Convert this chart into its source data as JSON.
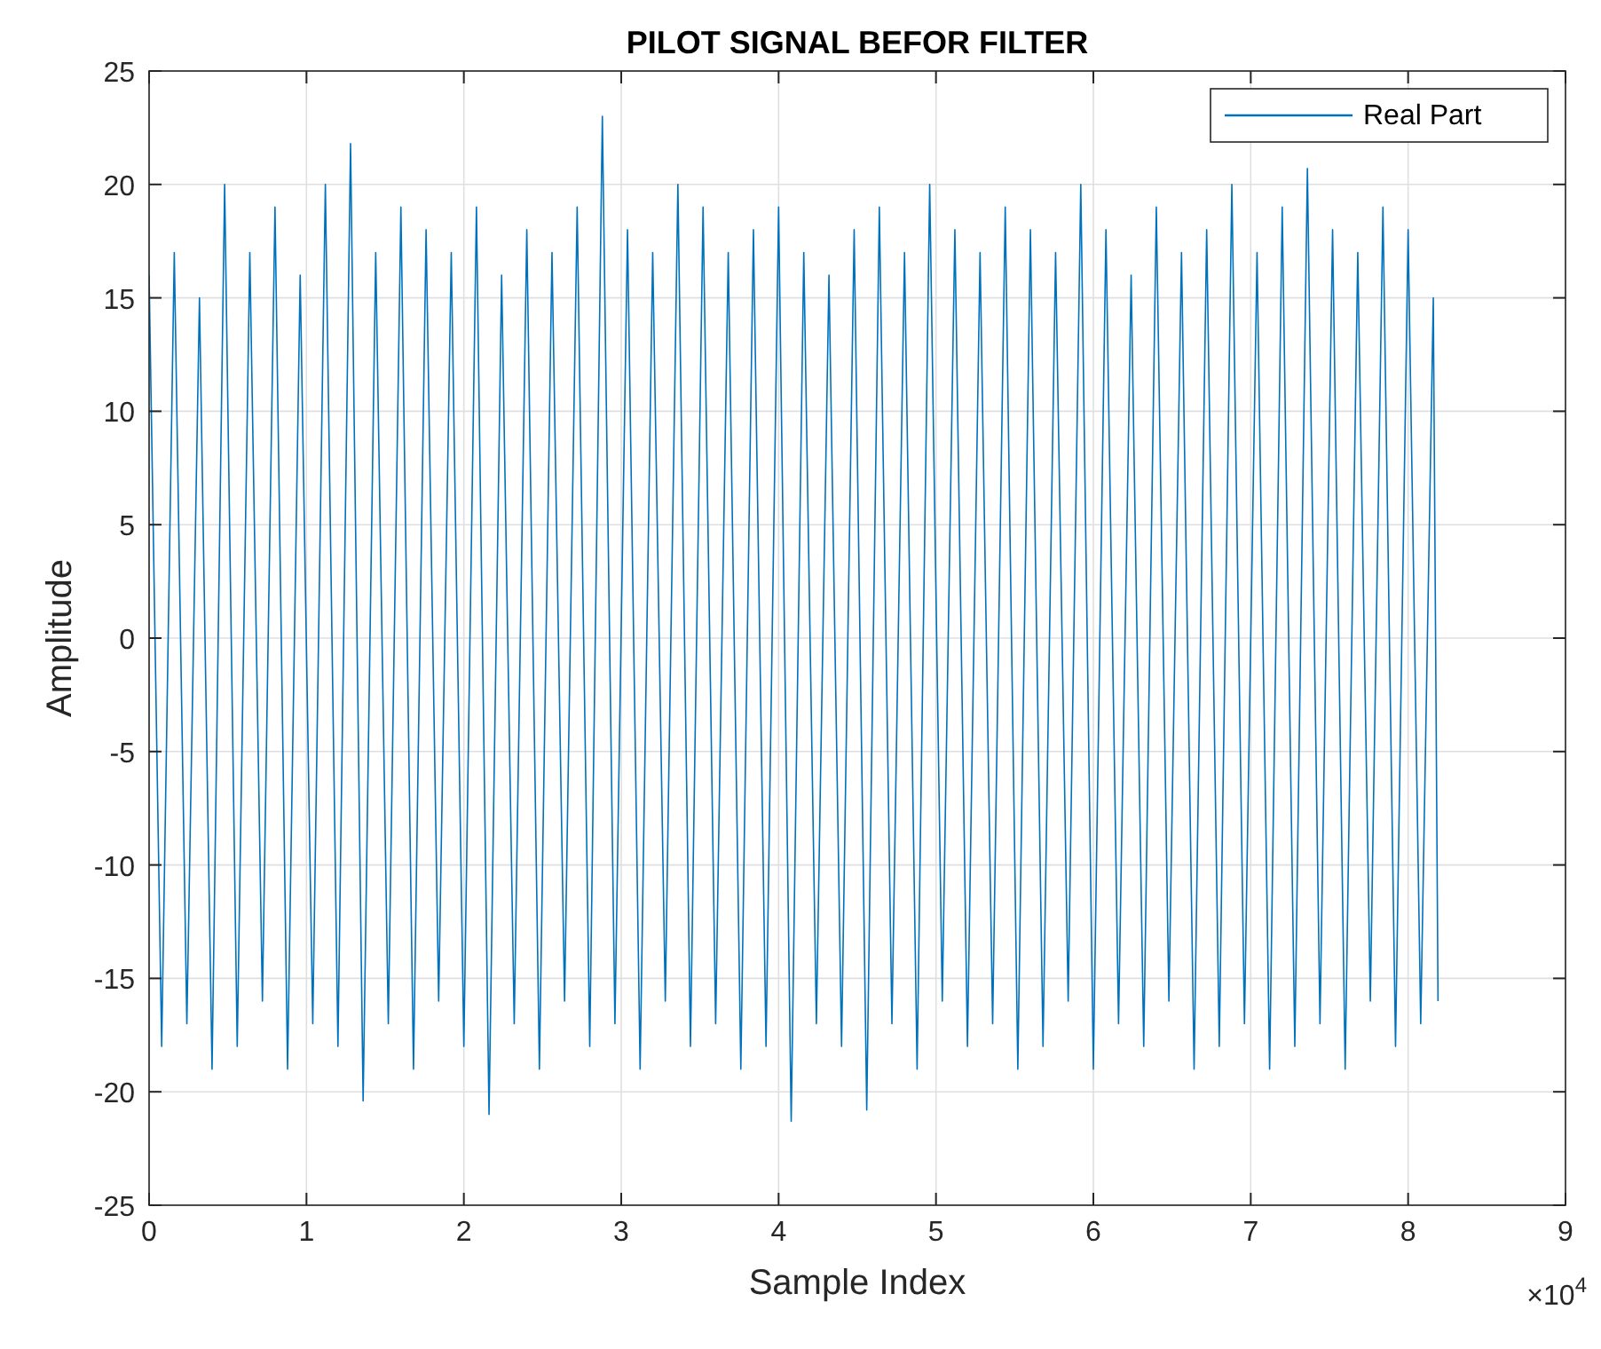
{
  "chart_data": {
    "type": "line",
    "title": "PILOT SIGNAL BEFOR FILTER",
    "xlabel": "Sample Index",
    "ylabel": "Amplitude",
    "x": [
      0,
      0.08,
      0.16,
      0.24,
      0.32,
      0.4,
      0.48,
      0.56,
      0.64,
      0.72,
      0.8,
      0.88,
      0.96,
      1.04,
      1.12,
      1.2,
      1.28,
      1.36,
      1.44,
      1.52,
      1.6,
      1.68,
      1.76,
      1.84,
      1.92,
      2,
      2.08,
      2.16,
      2.24,
      2.32,
      2.4,
      2.48,
      2.56,
      2.64,
      2.72,
      2.8,
      2.88,
      2.96,
      3.04,
      3.12,
      3.2,
      3.28,
      3.36,
      3.44,
      3.52,
      3.6,
      3.68,
      3.76,
      3.84,
      3.92,
      4,
      4.08,
      4.16,
      4.24,
      4.32,
      4.4,
      4.48,
      4.56,
      4.64,
      4.72,
      4.8,
      4.88,
      4.96,
      5.04,
      5.12,
      5.2,
      5.28,
      5.36,
      5.44,
      5.52,
      5.6,
      5.68,
      5.76,
      5.84,
      5.92,
      6,
      6.08,
      6.16,
      6.24,
      6.32,
      6.4,
      6.48,
      6.56,
      6.64,
      6.72,
      6.8,
      6.88,
      6.96,
      7.04,
      7.12,
      7.2,
      7.28,
      7.36,
      7.44,
      7.52,
      7.6,
      7.68,
      7.76,
      7.84,
      7.92,
      8,
      8.08,
      8.16,
      8.19
    ],
    "series": [
      {
        "name": "Real Part",
        "color": "#0072bd",
        "values": [
          16,
          -18,
          17,
          -17,
          15,
          -19,
          20,
          -18,
          17,
          -16,
          19,
          -19,
          16,
          -17,
          20,
          -18,
          21.8,
          -20.4,
          17,
          -17,
          19,
          -19,
          18,
          -16,
          17,
          -18,
          19,
          -21,
          16,
          -17,
          18,
          -19,
          17,
          -16,
          19,
          -18,
          23,
          -17,
          18,
          -19,
          17,
          -16,
          20,
          -18,
          19,
          -17,
          17,
          -19,
          18,
          -18,
          19,
          -21.3,
          17,
          -17,
          16,
          -18,
          18,
          -20.8,
          19,
          -17,
          17,
          -19,
          20,
          -16,
          18,
          -18,
          17,
          -17,
          19,
          -19,
          18,
          -18,
          17,
          -16,
          20,
          -19,
          18,
          -17,
          16,
          -18,
          19,
          -16,
          17,
          -19,
          18,
          -18,
          20,
          -17,
          17,
          -19,
          19,
          -18,
          20.7,
          -17,
          18,
          -19,
          17,
          -16,
          19,
          -18,
          18,
          -17,
          15,
          -16
        ]
      }
    ],
    "xlim": [
      0,
      9
    ],
    "xticks": [
      0,
      1,
      2,
      3,
      4,
      5,
      6,
      7,
      8,
      9
    ],
    "ylim": [
      -25,
      25
    ],
    "yticks": [
      -25,
      -20,
      -15,
      -10,
      -5,
      0,
      5,
      10,
      15,
      20,
      25
    ],
    "annotations": [
      "×10$^{4}$"
    ],
    "grid": true,
    "legend": "top right",
    "marker": "none",
    "line_style": "solid"
  }
}
